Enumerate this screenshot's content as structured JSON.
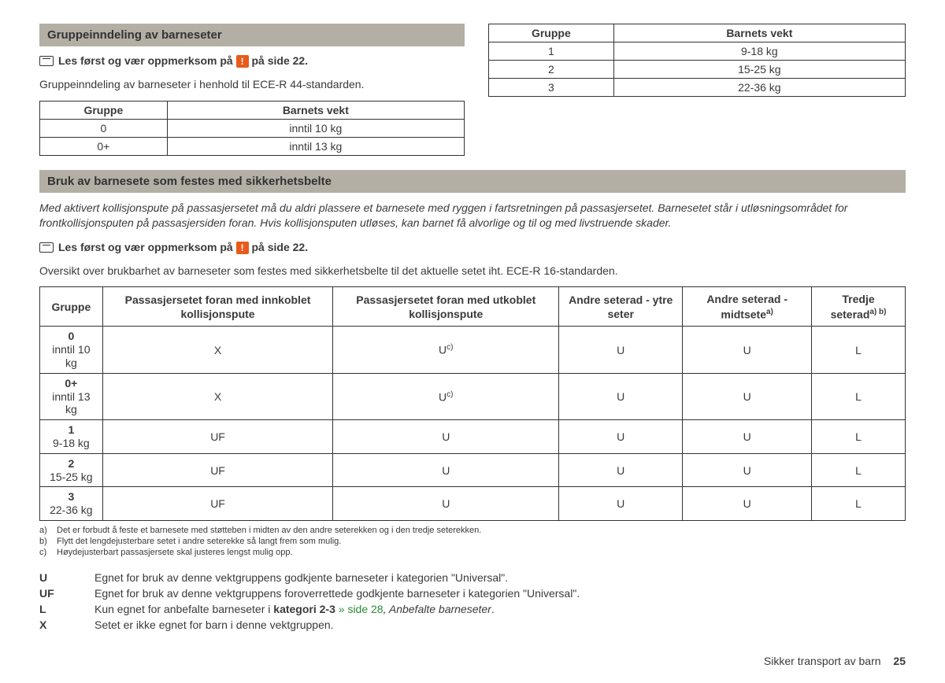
{
  "section1": {
    "title": "Gruppeinndeling av barneseter",
    "read_first_prefix": "Les først og vær oppmerksom på",
    "read_first_suffix": "på side 22.",
    "intro": "Gruppeinndeling av barneseter i henhold til ECE-R 44-standarden.",
    "table_left": {
      "headers": [
        "Gruppe",
        "Barnets vekt"
      ],
      "rows": [
        [
          "0",
          "inntil 10 kg"
        ],
        [
          "0+",
          "inntil 13 kg"
        ]
      ]
    },
    "table_right": {
      "headers": [
        "Gruppe",
        "Barnets vekt"
      ],
      "rows": [
        [
          "1",
          "9-18 kg"
        ],
        [
          "2",
          "15-25 kg"
        ],
        [
          "3",
          "22-36 kg"
        ]
      ]
    }
  },
  "section2": {
    "title": "Bruk av barnesete som festes med sikkerhetsbelte",
    "warning": "Med aktivert kollisjonspute på passasjersetet må du aldri plassere et barnesete med ryggen i fartsretningen på passasjersetet. Barnesetet står i utløsningsområdet for frontkollisjonsputen på passasjersiden foran. Hvis kollisjonsputen utløses, kan barnet få alvorlige og til og med livstruende skader.",
    "read_first_prefix": "Les først og vær oppmerksom på",
    "read_first_suffix": "på side 22.",
    "intro": "Oversikt over brukbarhet av barneseter som festes med sikkerhetsbelte til det aktuelle setet iht. ECE-R 16-standarden.",
    "table": {
      "headers": [
        "Gruppe",
        "Passasjersetet foran med innkoblet kollisjonspute",
        "Passasjersetet foran med utkoblet kollisjonspute",
        "Andre seterad - ytre seter",
        "Andre seterad - midtsete",
        "Tredje seterad"
      ],
      "header_sups": [
        "",
        "",
        "",
        "",
        "a)",
        "a) b)"
      ],
      "rows": [
        {
          "group": "0",
          "weight": "inntil 10 kg",
          "cells": [
            "X",
            "U",
            "U",
            "U",
            "L"
          ],
          "sups": [
            "",
            "c)",
            "",
            "",
            ""
          ]
        },
        {
          "group": "0+",
          "weight": "inntil 13 kg",
          "cells": [
            "X",
            "U",
            "U",
            "U",
            "L"
          ],
          "sups": [
            "",
            "c)",
            "",
            "",
            ""
          ]
        },
        {
          "group": "1",
          "weight": "9-18 kg",
          "cells": [
            "UF",
            "U",
            "U",
            "U",
            "L"
          ],
          "sups": [
            "",
            "",
            "",
            "",
            ""
          ]
        },
        {
          "group": "2",
          "weight": "15-25 kg",
          "cells": [
            "UF",
            "U",
            "U",
            "U",
            "L"
          ],
          "sups": [
            "",
            "",
            "",
            "",
            ""
          ]
        },
        {
          "group": "3",
          "weight": "22-36 kg",
          "cells": [
            "UF",
            "U",
            "U",
            "U",
            "L"
          ],
          "sups": [
            "",
            "",
            "",
            "",
            ""
          ]
        }
      ]
    },
    "footnotes": [
      {
        "marker": "a)",
        "text": "Det er forbudt å feste et barnesete med støtteben i midten av den andre seterekken og i den tredje seterekken."
      },
      {
        "marker": "b)",
        "text": "Flytt det lengdejusterbare setet i andre seterekke så langt frem som mulig."
      },
      {
        "marker": "c)",
        "text": "Høydejusterbart passasjersete skal justeres lengst mulig opp."
      }
    ],
    "legend": [
      {
        "key": "U",
        "text": "Egnet for bruk av denne vektgruppens godkjente barneseter i kategorien \"Universal\"."
      },
      {
        "key": "UF",
        "text": "Egnet for bruk av denne vektgruppens foroverrettede godkjente barneseter i kategorien \"Universal\"."
      },
      {
        "key": "L",
        "text_prefix": "Kun egnet for anbefalte barneseter i ",
        "bold": "kategori 2-3",
        "link": " » side 28",
        "italic": ", Anbefalte barneseter",
        "text_suffix": "."
      },
      {
        "key": "X",
        "text": "Setet er ikke egnet for barn i denne vektgruppen."
      }
    ]
  },
  "footer": {
    "label": "Sikker transport av barn",
    "page": "25"
  }
}
